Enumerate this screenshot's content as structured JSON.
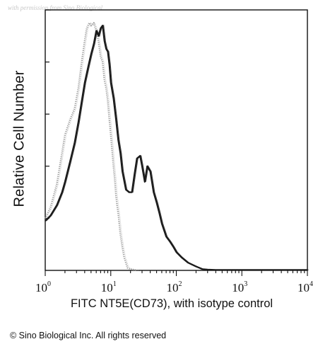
{
  "watermark": "with permission from Sino Biological",
  "copyright": "© Sino Biological Inc. All rights reserved",
  "chart_data": {
    "type": "line",
    "title": "",
    "xlabel": "FITC NT5E(CD73), with isotype control",
    "ylabel": "Relative Cell Number",
    "x_scale": "log",
    "xlim": [
      1,
      10000
    ],
    "ylim": [
      0,
      100
    ],
    "grid": false,
    "x_ticks": [
      {
        "base": "10",
        "exp": "0",
        "value": 1
      },
      {
        "base": "10",
        "exp": "1",
        "value": 10
      },
      {
        "base": "10",
        "exp": "2",
        "value": 100
      },
      {
        "base": "10",
        "exp": "3",
        "value": 1000
      },
      {
        "base": "10",
        "exp": "4",
        "value": 10000
      }
    ],
    "series": [
      {
        "color": "#9a9a9a",
        "style": "stippled",
        "x": [
          1,
          1.2,
          1.5,
          1.8,
          2.0,
          2.4,
          2.8,
          3.2,
          3.6,
          4.0,
          4.3,
          4.7,
          5.0,
          5.5,
          6.0,
          6.5,
          7.0,
          7.5,
          8.0,
          8.5,
          9.0,
          9.5,
          10.0,
          10.5,
          11.0,
          11.5,
          12.0,
          12.5,
          13.0,
          14.0,
          15.0,
          16.0,
          17.0,
          18.0,
          20.0,
          25.0
        ],
        "y": [
          20,
          24,
          33,
          45,
          52,
          58,
          62,
          70,
          80,
          88,
          93,
          95,
          94,
          95,
          92,
          88,
          82,
          80,
          73,
          70,
          65,
          58,
          52,
          46,
          40,
          35,
          29,
          25,
          22,
          14,
          9,
          5,
          3,
          1,
          0.5,
          0
        ]
      },
      {
        "color": "#1a1a1a",
        "style": "solid",
        "x": [
          1,
          1.2,
          1.5,
          1.8,
          2.0,
          2.4,
          2.8,
          3.2,
          3.6,
          4.0,
          4.5,
          5.0,
          5.5,
          6.0,
          6.5,
          7.0,
          7.5,
          8.0,
          8.5,
          9.0,
          9.5,
          10.0,
          11.0,
          12.0,
          13.0,
          14.0,
          15.0,
          17.0,
          19.0,
          21.0,
          23.0,
          25.0,
          28.0,
          30.0,
          33.0,
          36.0,
          40.0,
          45.0,
          50.0,
          55.0,
          60.0,
          70.0,
          80.0,
          90.0,
          100.0,
          120.0,
          150.0,
          200.0,
          250.0,
          300.0,
          400.0,
          600.0,
          1000.0,
          10000.0
        ],
        "y": [
          19,
          21,
          25,
          30,
          34,
          42,
          49,
          57,
          65,
          72,
          78,
          83,
          87,
          92,
          90,
          93,
          94,
          88,
          85,
          84,
          79,
          72,
          66,
          58,
          50,
          45,
          38,
          31,
          30,
          30,
          37,
          43,
          44,
          40,
          34,
          40,
          38,
          30,
          26,
          22,
          18,
          13,
          11,
          9,
          7,
          5,
          3,
          1.5,
          0.5,
          0.3,
          0.2,
          0.2,
          0.2,
          0.2
        ]
      }
    ]
  }
}
